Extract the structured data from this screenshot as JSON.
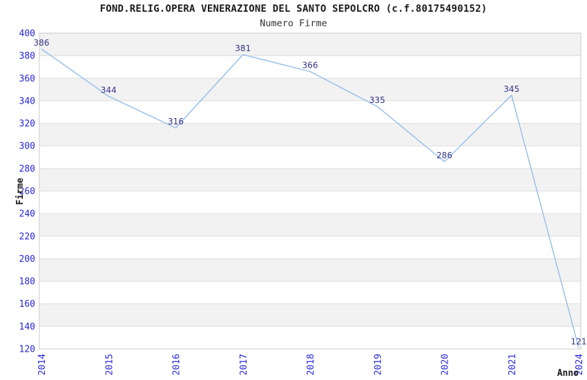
{
  "chart_data": {
    "type": "line",
    "title": "FOND.RELIG.OPERA VENERAZIONE DEL SANTO SEPOLCRO (c.f.80175490152)",
    "subtitle": "Numero Firme",
    "xlabel": "Anno",
    "ylabel": "Firme",
    "categories": [
      "2014",
      "2015",
      "2016",
      "2017",
      "2018",
      "2019",
      "2020",
      "2021",
      "2024"
    ],
    "values": [
      386,
      344,
      316,
      381,
      366,
      335,
      286,
      345,
      121
    ],
    "ylim": [
      120,
      400
    ],
    "ytick_step": 20,
    "grid": "horizontal-gridlines-with-alternating-bands",
    "legend": "none",
    "x_tick_rotation_degrees": -90,
    "colors": {
      "line": "#93bce9",
      "tick_label": "#2626dd",
      "data_label": "#333388",
      "band_fill": "#f2f2f2",
      "gridline": "#dedede",
      "frame": "#c9c9c9",
      "title_text": "#1a1a1a",
      "axis_title_text": "#1a1a1a",
      "background": "#ffffff"
    }
  }
}
